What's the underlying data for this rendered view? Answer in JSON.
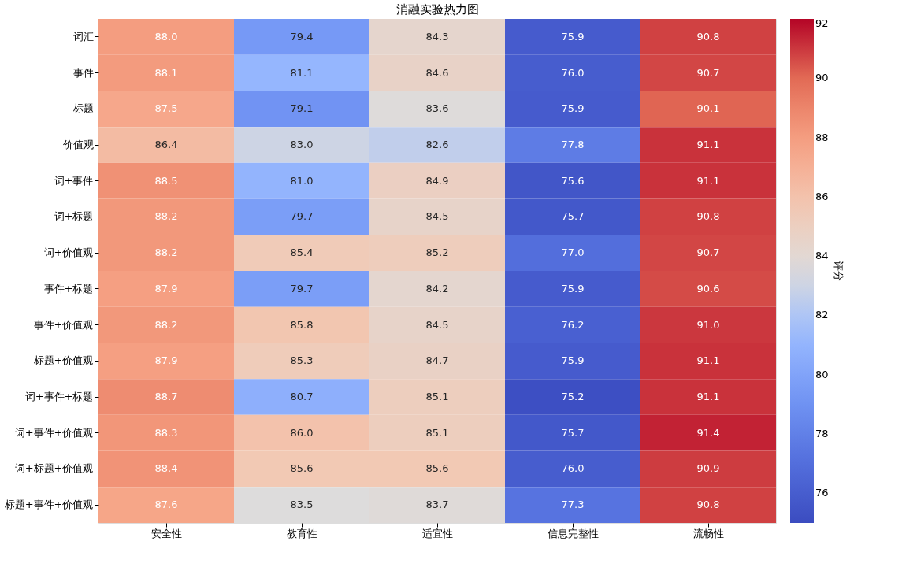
{
  "chart_data": {
    "type": "heatmap",
    "title": "消融实验热力图",
    "categories": [
      "安全性",
      "教育性",
      "适宜性",
      "信息完整性",
      "流畅性"
    ],
    "y_categories": [
      "词汇",
      "事件",
      "标题",
      "价值观",
      "词+事件",
      "词+标题",
      "词+价值观",
      "事件+标题",
      "事件+价值观",
      "标题+价值观",
      "词+事件+标题",
      "词+事件+价值观",
      "词+标题+价值观",
      "标题+事件+价值观"
    ],
    "cells": [
      [
        88.0,
        79.4,
        84.3,
        75.9,
        90.8
      ],
      [
        88.1,
        81.1,
        84.6,
        76.0,
        90.7
      ],
      [
        87.5,
        79.1,
        83.6,
        75.9,
        90.1
      ],
      [
        86.4,
        83.0,
        82.6,
        77.8,
        91.1
      ],
      [
        88.5,
        81.0,
        84.9,
        75.6,
        91.1
      ],
      [
        88.2,
        79.7,
        84.5,
        75.7,
        90.8
      ],
      [
        88.2,
        85.4,
        85.2,
        77.0,
        90.7
      ],
      [
        87.9,
        79.7,
        84.2,
        75.9,
        90.6
      ],
      [
        88.2,
        85.8,
        84.5,
        76.2,
        91.0
      ],
      [
        87.9,
        85.3,
        84.7,
        75.9,
        91.1
      ],
      [
        88.7,
        80.7,
        85.1,
        75.2,
        91.1
      ],
      [
        88.3,
        86.0,
        85.1,
        75.7,
        91.4
      ],
      [
        88.4,
        85.6,
        85.6,
        76.0,
        90.9
      ],
      [
        87.6,
        83.5,
        83.7,
        77.3,
        90.8
      ]
    ],
    "cell_labels": [
      [
        "88.0",
        "79.4",
        "84.3",
        "75.9",
        "90.8"
      ],
      [
        "88.1",
        "81.1",
        "84.6",
        "76.0",
        "90.7"
      ],
      [
        "87.5",
        "79.1",
        "83.6",
        "75.9",
        "90.1"
      ],
      [
        "86.4",
        "83.0",
        "82.6",
        "77.8",
        "91.1"
      ],
      [
        "88.5",
        "81.0",
        "84.9",
        "75.6",
        "91.1"
      ],
      [
        "88.2",
        "79.7",
        "84.5",
        "75.7",
        "90.8"
      ],
      [
        "88.2",
        "85.4",
        "85.2",
        "77.0",
        "90.7"
      ],
      [
        "87.9",
        "79.7",
        "84.2",
        "75.9",
        "90.6"
      ],
      [
        "88.2",
        "85.8",
        "84.5",
        "76.2",
        "91.0"
      ],
      [
        "87.9",
        "85.3",
        "84.7",
        "75.9",
        "91.1"
      ],
      [
        "88.7",
        "80.7",
        "85.1",
        "75.2",
        "91.1"
      ],
      [
        "88.3",
        "86.0",
        "85.1",
        "75.7",
        "91.4"
      ],
      [
        "88.4",
        "85.6",
        "85.6",
        "76.0",
        "90.9"
      ],
      [
        "87.6",
        "83.5",
        "83.7",
        "77.3",
        "90.8"
      ]
    ],
    "clim": [
      75,
      92
    ],
    "cticks": [
      76,
      78,
      80,
      82,
      84,
      86,
      88,
      90,
      92
    ],
    "clabel": "评分"
  }
}
